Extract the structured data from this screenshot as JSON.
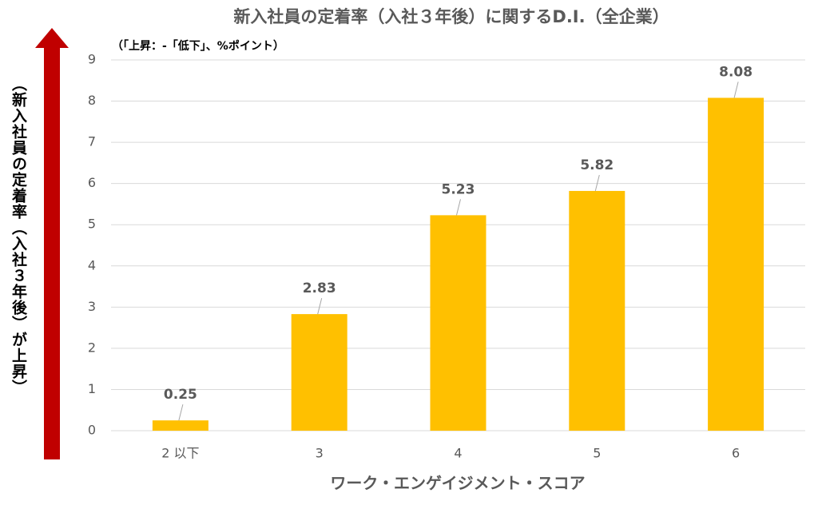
{
  "chart_data": {
    "type": "bar",
    "title": "新入社員の定着率（入社３年後）に関するD.I.（全企業）",
    "subtitle": "（「上昇：-「低下」、%ポイント）",
    "y_axis_label": "（新入社員の定着率（入社３年後）が上昇）",
    "x_axis_label": "ワーク・エンゲイジメント・スコア",
    "categories": [
      "2 以下",
      "3",
      "4",
      "5",
      "6"
    ],
    "values": [
      0.25,
      2.83,
      5.23,
      5.82,
      8.08
    ],
    "color": "#ffc000",
    "ylim": [
      0,
      9
    ],
    "yticks": [
      0,
      1,
      2,
      3,
      4,
      5,
      6,
      7,
      8,
      9
    ],
    "grid": true
  }
}
